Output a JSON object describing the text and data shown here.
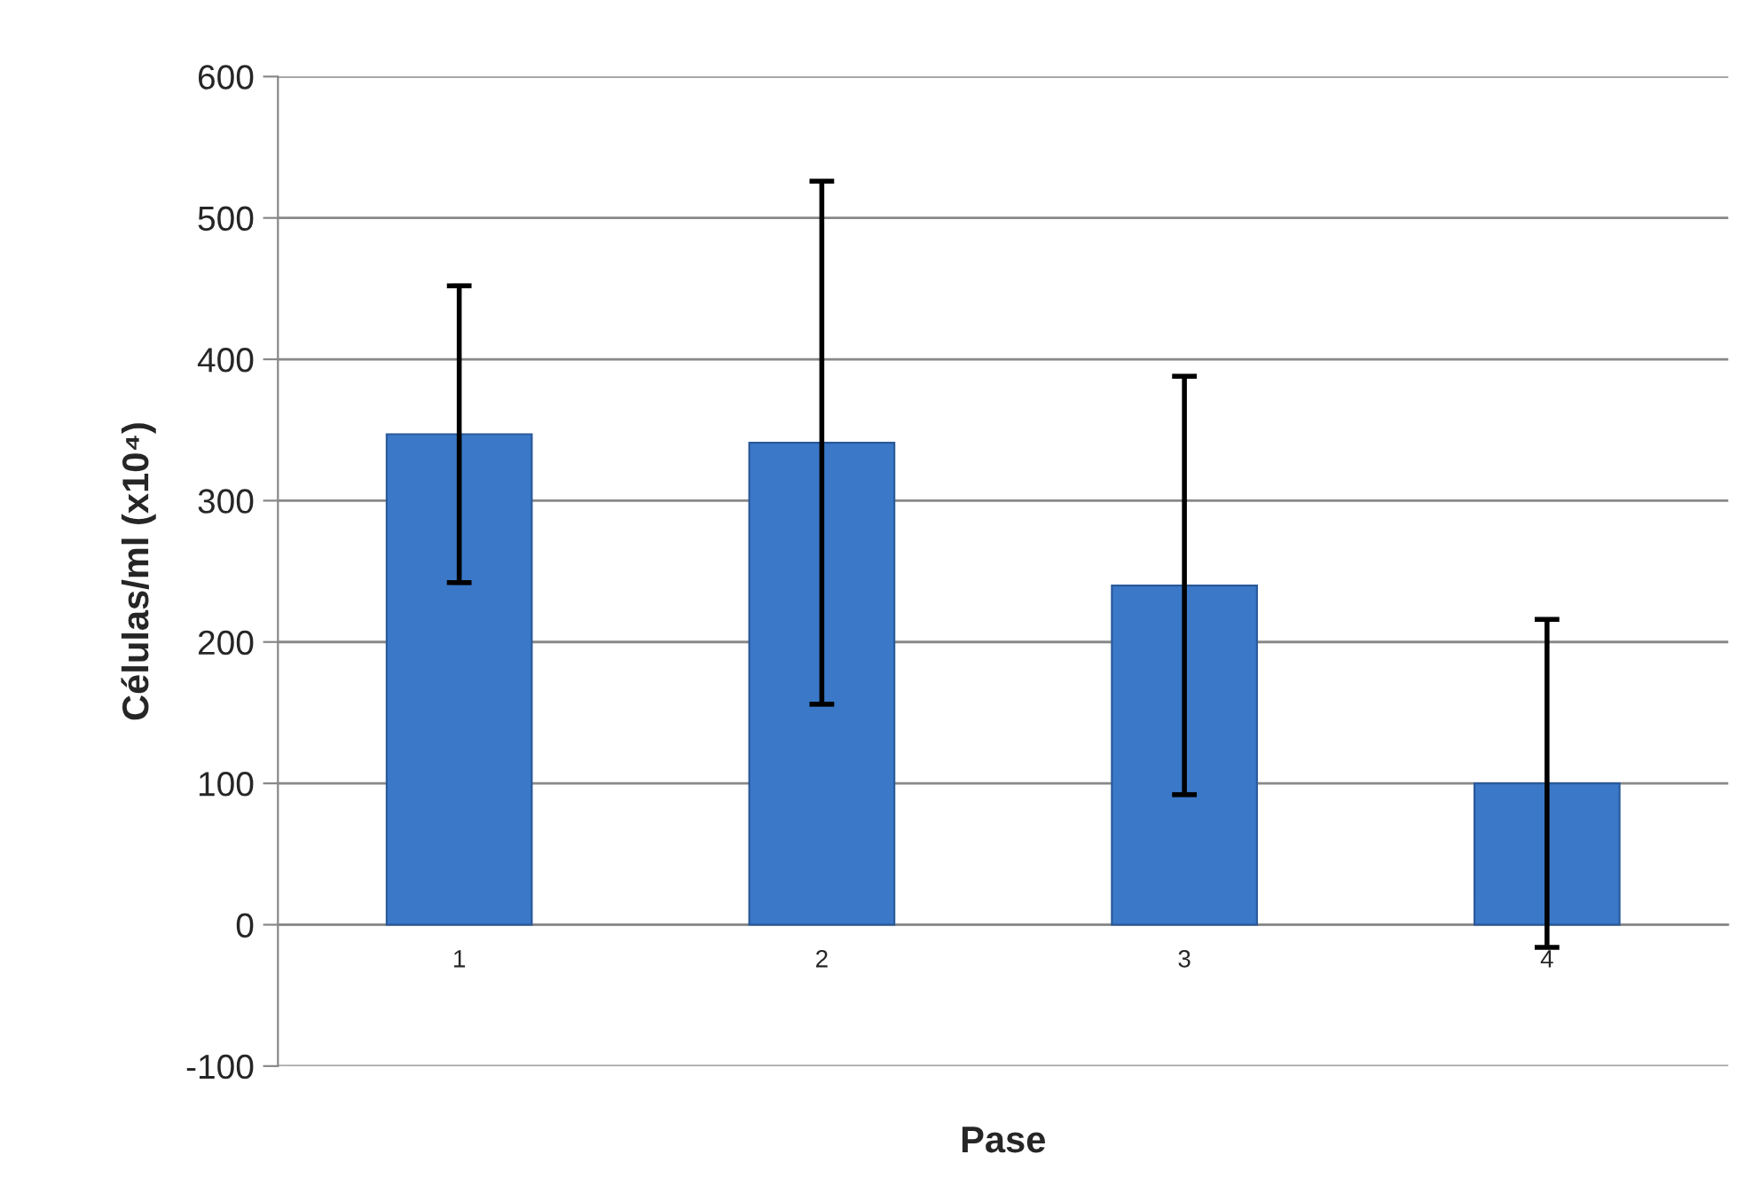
{
  "chart_data": {
    "type": "bar",
    "xlabel": "Pase",
    "ylabel": "Células/ml (x10⁴)",
    "categories": [
      "1",
      "2",
      "3",
      "4"
    ],
    "values": [
      347,
      341,
      240,
      100
    ],
    "errors": [
      105,
      185,
      148,
      116
    ],
    "color": "#3b78c8",
    "ylim": [
      -100,
      600
    ],
    "yticks": [
      -100,
      0,
      100,
      200,
      300,
      400,
      500,
      600
    ],
    "grid": "y",
    "legend": false
  }
}
